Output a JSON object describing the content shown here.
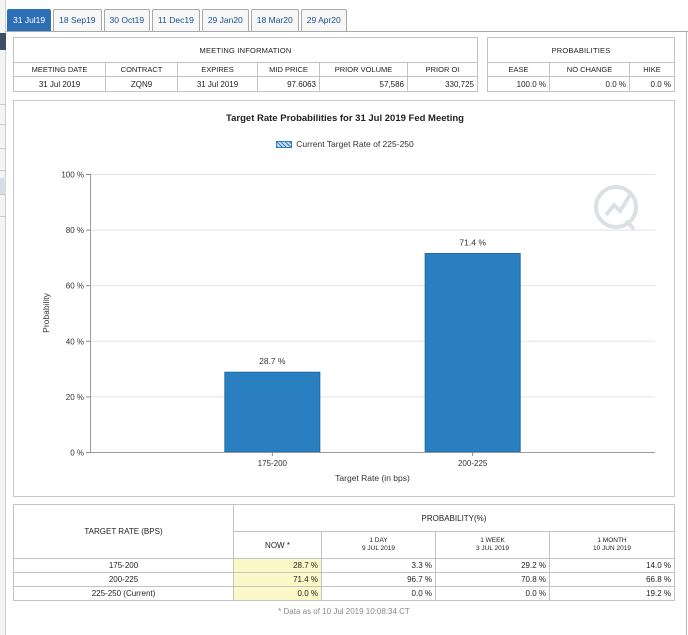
{
  "tabs": [
    "31 Jul19",
    "18 Sep19",
    "30 Oct19",
    "11 Dec19",
    "29 Jan20",
    "18 Mar20",
    "29 Apr20"
  ],
  "active_tab": 0,
  "meeting_info": {
    "header": "MEETING INFORMATION",
    "columns": [
      "MEETING DATE",
      "CONTRACT",
      "EXPIRES",
      "MID PRICE",
      "PRIOR VOLUME",
      "PRIOR OI"
    ],
    "values": [
      "31 Jul 2019",
      "ZQN9",
      "31 Jul 2019",
      "97.6063",
      "57,586",
      "330,725"
    ]
  },
  "probabilities": {
    "header": "PROBABILITIES",
    "columns": [
      "EASE",
      "NO CHANGE",
      "HIKE"
    ],
    "values": [
      "100.0 %",
      "0.0 %",
      "0.0 %"
    ]
  },
  "chart_data": {
    "type": "bar",
    "title": "Target Rate Probabilities for 31 Jul 2019 Fed Meeting",
    "legend": "Current Target Rate of 225-250",
    "xlabel": "Target Rate (in bps)",
    "ylabel": "Probability",
    "categories": [
      "175-200",
      "200-225"
    ],
    "values": [
      28.7,
      71.4
    ],
    "data_labels": [
      "28.7 %",
      "71.4 %"
    ],
    "yticks": [
      "0 %",
      "20 %",
      "40 %",
      "60 %",
      "80 %",
      "100 %"
    ],
    "ylim": [
      0,
      100
    ],
    "bar_color": "#2a7fc0",
    "grid": true
  },
  "bottom_table": {
    "rate_header": "TARGET RATE (BPS)",
    "prob_header": "PROBABILITY(%)",
    "periods": [
      {
        "label": "NOW *",
        "date": ""
      },
      {
        "label": "1 DAY",
        "date": "9 JUL 2019"
      },
      {
        "label": "1 WEEK",
        "date": "3 JUL 2019"
      },
      {
        "label": "1 MONTH",
        "date": "10 JUN 2019"
      }
    ],
    "rows": [
      {
        "rate": "175-200",
        "values": [
          "28.7 %",
          "3.3 %",
          "29.2 %",
          "14.0 %"
        ]
      },
      {
        "rate": "200-225",
        "values": [
          "71.4 %",
          "96.7 %",
          "70.8 %",
          "66.8 %"
        ]
      },
      {
        "rate": "225-250 (Current)",
        "values": [
          "0.0 %",
          "0.0 %",
          "0.0 %",
          "19.2 %"
        ]
      }
    ],
    "footnote": "* Data as of 10 Jul 2019 10:08:34 CT"
  }
}
